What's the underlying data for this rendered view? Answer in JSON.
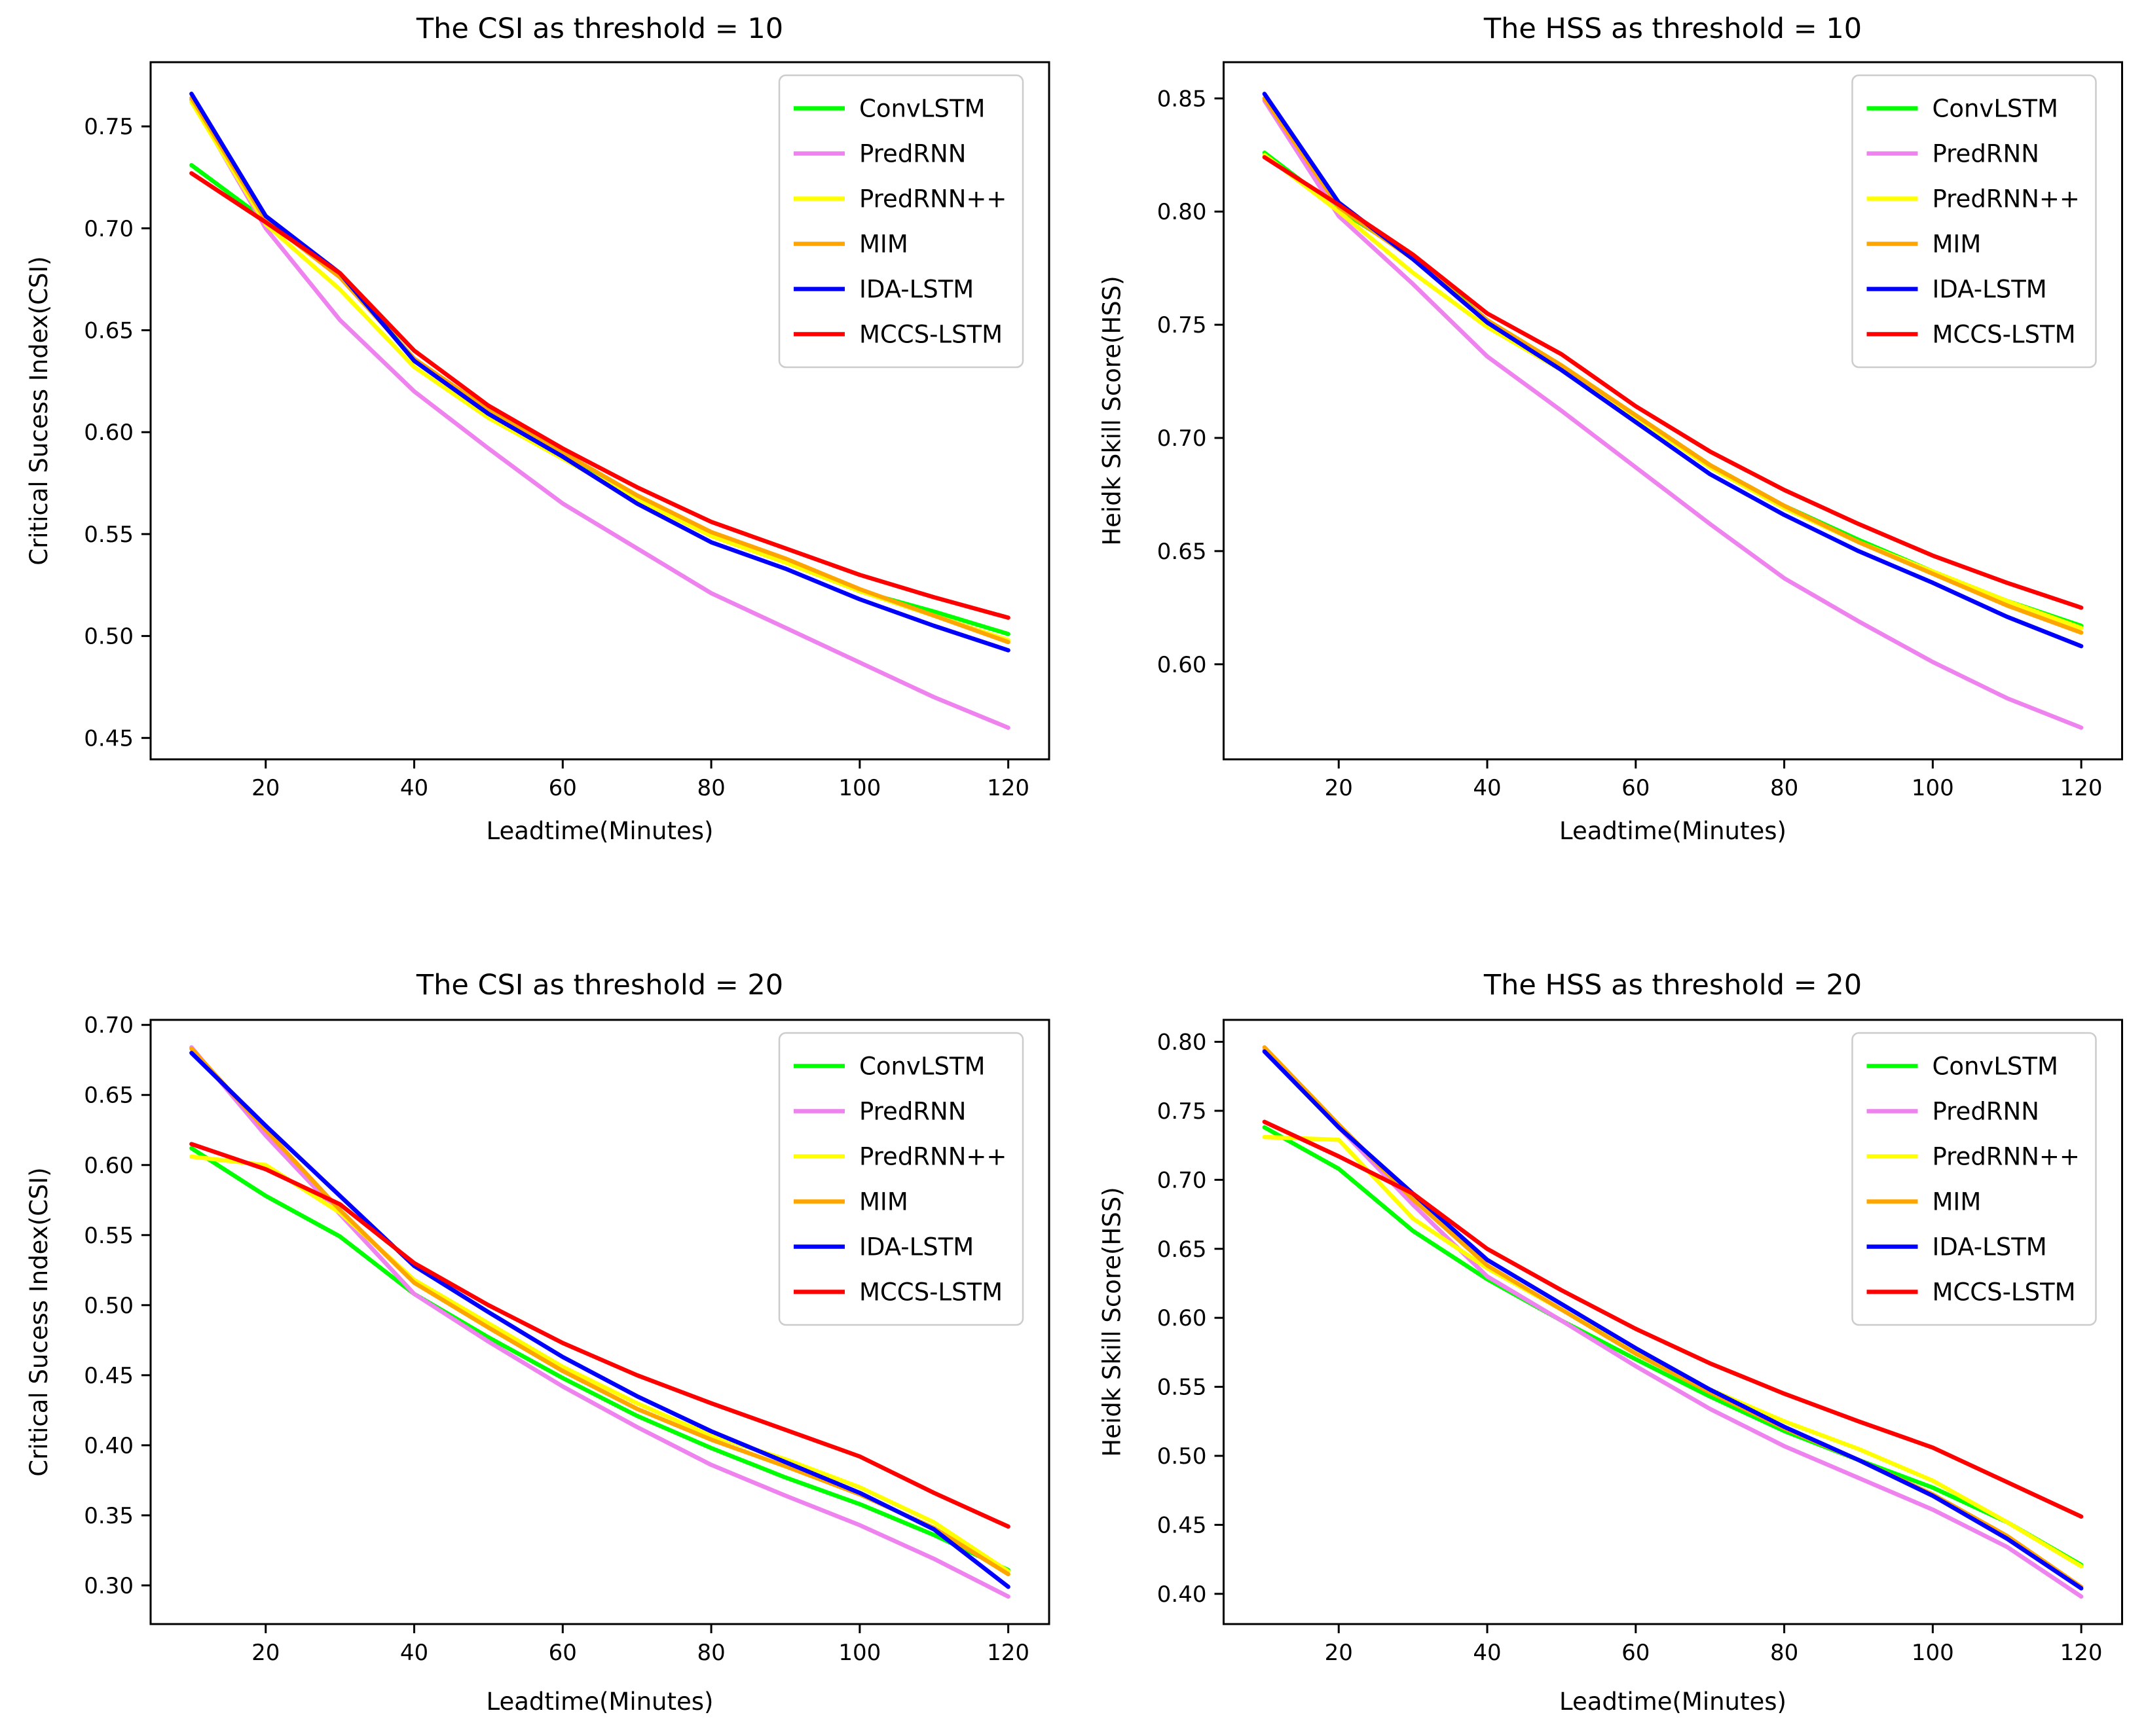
{
  "figure": {
    "background": "#ffffff",
    "text_color": "#000000",
    "legend_border_color": "#cccccc",
    "legend_background": "#ffffff"
  },
  "chart_data": [
    {
      "type": "line",
      "title": "The CSI as threshold = 10",
      "xlabel": "Leadtime(Minutes)",
      "ylabel": "Critical Sucess Index(CSI)",
      "x": [
        10,
        20,
        30,
        40,
        50,
        60,
        70,
        80,
        90,
        100,
        110,
        120
      ],
      "xlim": [
        4.5,
        125.5
      ],
      "ylim": [
        0.4395,
        0.7815
      ],
      "xticks": [
        "20",
        "40",
        "60",
        "80",
        "100",
        "120"
      ],
      "xtick_values": [
        20,
        40,
        60,
        80,
        100,
        120
      ],
      "yticks": [
        "0.45",
        "0.50",
        "0.55",
        "0.60",
        "0.65",
        "0.70",
        "0.75"
      ],
      "ytick_values": [
        0.45,
        0.5,
        0.55,
        0.6,
        0.65,
        0.7,
        0.75
      ],
      "grid": false,
      "legend_position": "upper right",
      "series": [
        {
          "name": "ConvLSTM",
          "color": "#00ff00",
          "values": [
            0.731,
            0.704,
            0.677,
            0.636,
            0.61,
            0.589,
            0.568,
            0.55,
            0.537,
            0.522,
            0.512,
            0.501
          ]
        },
        {
          "name": "PredRNN",
          "color": "#ee82ee",
          "values": [
            0.763,
            0.7,
            0.655,
            0.62,
            0.592,
            0.565,
            0.543,
            0.521,
            0.504,
            0.487,
            0.47,
            0.455
          ]
        },
        {
          "name": "PredRNN++",
          "color": "#ffff00",
          "values": [
            0.762,
            0.702,
            0.67,
            0.632,
            0.607,
            0.587,
            0.567,
            0.549,
            0.536,
            0.522,
            0.51,
            0.498
          ]
        },
        {
          "name": "MIM",
          "color": "#ffa500",
          "values": [
            0.764,
            0.704,
            0.676,
            0.636,
            0.611,
            0.59,
            0.569,
            0.551,
            0.538,
            0.523,
            0.51,
            0.497
          ]
        },
        {
          "name": "IDA-LSTM",
          "color": "#0000ff",
          "values": [
            0.766,
            0.706,
            0.678,
            0.635,
            0.609,
            0.588,
            0.565,
            0.546,
            0.533,
            0.518,
            0.505,
            0.493
          ]
        },
        {
          "name": "MCCS-LSTM",
          "color": "#ff0000",
          "values": [
            0.727,
            0.703,
            0.678,
            0.64,
            0.613,
            0.592,
            0.573,
            0.556,
            0.543,
            0.53,
            0.519,
            0.509
          ]
        }
      ]
    },
    {
      "type": "line",
      "title": "The HSS as threshold = 10",
      "xlabel": "Leadtime(Minutes)",
      "ylabel": "Heidk Skill Score(HSS)",
      "x": [
        10,
        20,
        30,
        40,
        50,
        60,
        70,
        80,
        90,
        100,
        110,
        120
      ],
      "xlim": [
        4.5,
        125.5
      ],
      "ylim": [
        0.558,
        0.866
      ],
      "xticks": [
        "20",
        "40",
        "60",
        "80",
        "100",
        "120"
      ],
      "xtick_values": [
        20,
        40,
        60,
        80,
        100,
        120
      ],
      "yticks": [
        "0.60",
        "0.65",
        "0.70",
        "0.75",
        "0.80",
        "0.85"
      ],
      "ytick_values": [
        0.6,
        0.65,
        0.7,
        0.75,
        0.8,
        0.85
      ],
      "grid": false,
      "legend_position": "upper right",
      "series": [
        {
          "name": "ConvLSTM",
          "color": "#00ff00",
          "values": [
            0.826,
            0.801,
            0.78,
            0.752,
            0.732,
            0.71,
            0.688,
            0.67,
            0.655,
            0.641,
            0.628,
            0.617
          ]
        },
        {
          "name": "PredRNN",
          "color": "#ee82ee",
          "values": [
            0.849,
            0.798,
            0.768,
            0.736,
            0.712,
            0.687,
            0.662,
            0.638,
            0.619,
            0.601,
            0.585,
            0.572
          ]
        },
        {
          "name": "PredRNN++",
          "color": "#ffff00",
          "values": [
            0.825,
            0.8,
            0.773,
            0.749,
            0.73,
            0.709,
            0.687,
            0.669,
            0.654,
            0.641,
            0.628,
            0.616
          ]
        },
        {
          "name": "MIM",
          "color": "#ffa500",
          "values": [
            0.85,
            0.802,
            0.779,
            0.752,
            0.732,
            0.71,
            0.688,
            0.67,
            0.654,
            0.64,
            0.626,
            0.614
          ]
        },
        {
          "name": "IDA-LSTM",
          "color": "#0000ff",
          "values": [
            0.852,
            0.804,
            0.779,
            0.751,
            0.73,
            0.707,
            0.684,
            0.666,
            0.65,
            0.636,
            0.621,
            0.608
          ]
        },
        {
          "name": "MCCS-LSTM",
          "color": "#ff0000",
          "values": [
            0.824,
            0.803,
            0.781,
            0.755,
            0.737,
            0.714,
            0.694,
            0.677,
            0.662,
            0.648,
            0.636,
            0.625
          ]
        }
      ]
    },
    {
      "type": "line",
      "title": "The CSI as threshold = 20",
      "xlabel": "Leadtime(Minutes)",
      "ylabel": "Critical Sucess Index(CSI)",
      "x": [
        10,
        20,
        30,
        40,
        50,
        60,
        70,
        80,
        90,
        100,
        110,
        120
      ],
      "xlim": [
        4.5,
        125.5
      ],
      "ylim": [
        0.2724,
        0.7036
      ],
      "xticks": [
        "20",
        "40",
        "60",
        "80",
        "100",
        "120"
      ],
      "xtick_values": [
        20,
        40,
        60,
        80,
        100,
        120
      ],
      "yticks": [
        "0.30",
        "0.35",
        "0.40",
        "0.45",
        "0.50",
        "0.55",
        "0.60",
        "0.65",
        "0.70"
      ],
      "ytick_values": [
        0.3,
        0.35,
        0.4,
        0.45,
        0.5,
        0.55,
        0.6,
        0.65,
        0.7
      ],
      "grid": false,
      "legend_position": "upper right",
      "series": [
        {
          "name": "ConvLSTM",
          "color": "#00ff00",
          "values": [
            0.612,
            0.578,
            0.549,
            0.508,
            0.477,
            0.448,
            0.421,
            0.398,
            0.377,
            0.358,
            0.336,
            0.311
          ]
        },
        {
          "name": "PredRNN",
          "color": "#ee82ee",
          "values": [
            0.684,
            0.621,
            0.565,
            0.508,
            0.474,
            0.442,
            0.413,
            0.386,
            0.364,
            0.343,
            0.319,
            0.292
          ]
        },
        {
          "name": "PredRNN++",
          "color": "#ffff00",
          "values": [
            0.606,
            0.6,
            0.566,
            0.518,
            0.487,
            0.456,
            0.43,
            0.407,
            0.39,
            0.37,
            0.345,
            0.31
          ]
        },
        {
          "name": "MIM",
          "color": "#ffa500",
          "values": [
            0.683,
            0.625,
            0.568,
            0.516,
            0.484,
            0.453,
            0.426,
            0.404,
            0.385,
            0.365,
            0.341,
            0.308
          ]
        },
        {
          "name": "IDA-LSTM",
          "color": "#0000ff",
          "values": [
            0.68,
            0.628,
            0.578,
            0.528,
            0.495,
            0.463,
            0.435,
            0.41,
            0.388,
            0.366,
            0.34,
            0.299
          ]
        },
        {
          "name": "MCCS-LSTM",
          "color": "#ff0000",
          "values": [
            0.615,
            0.597,
            0.572,
            0.53,
            0.5,
            0.473,
            0.45,
            0.43,
            0.411,
            0.392,
            0.366,
            0.342
          ]
        }
      ]
    },
    {
      "type": "line",
      "title": "The HSS as threshold = 20",
      "xlabel": "Leadtime(Minutes)",
      "ylabel": "Heidk Skill Score(HSS)",
      "x": [
        10,
        20,
        30,
        40,
        50,
        60,
        70,
        80,
        90,
        100,
        110,
        120
      ],
      "xlim": [
        4.5,
        125.5
      ],
      "ylim": [
        0.3781,
        0.8159
      ],
      "xticks": [
        "20",
        "40",
        "60",
        "80",
        "100",
        "120"
      ],
      "xtick_values": [
        20,
        40,
        60,
        80,
        100,
        120
      ],
      "yticks": [
        "0.40",
        "0.45",
        "0.50",
        "0.55",
        "0.60",
        "0.65",
        "0.70",
        "0.75",
        "0.80"
      ],
      "ytick_values": [
        0.4,
        0.45,
        0.5,
        0.55,
        0.6,
        0.65,
        0.7,
        0.75,
        0.8
      ],
      "grid": false,
      "legend_position": "upper right",
      "series": [
        {
          "name": "ConvLSTM",
          "color": "#00ff00",
          "values": [
            0.738,
            0.708,
            0.663,
            0.628,
            0.598,
            0.57,
            0.543,
            0.518,
            0.497,
            0.477,
            0.452,
            0.421
          ]
        },
        {
          "name": "PredRNN",
          "color": "#ee82ee",
          "values": [
            0.794,
            0.738,
            0.682,
            0.63,
            0.598,
            0.565,
            0.534,
            0.507,
            0.484,
            0.461,
            0.434,
            0.398
          ]
        },
        {
          "name": "PredRNN++",
          "color": "#ffff00",
          "values": [
            0.731,
            0.729,
            0.672,
            0.636,
            0.606,
            0.575,
            0.548,
            0.525,
            0.505,
            0.482,
            0.452,
            0.42
          ]
        },
        {
          "name": "MIM",
          "color": "#ffa500",
          "values": [
            0.796,
            0.74,
            0.686,
            0.638,
            0.606,
            0.574,
            0.546,
            0.52,
            0.497,
            0.472,
            0.442,
            0.405
          ]
        },
        {
          "name": "IDA-LSTM",
          "color": "#0000ff",
          "values": [
            0.793,
            0.738,
            0.69,
            0.642,
            0.61,
            0.578,
            0.548,
            0.521,
            0.497,
            0.471,
            0.44,
            0.404
          ]
        },
        {
          "name": "MCCS-LSTM",
          "color": "#ff0000",
          "values": [
            0.742,
            0.717,
            0.69,
            0.65,
            0.62,
            0.592,
            0.567,
            0.545,
            0.525,
            0.506,
            0.481,
            0.456
          ]
        }
      ]
    }
  ]
}
